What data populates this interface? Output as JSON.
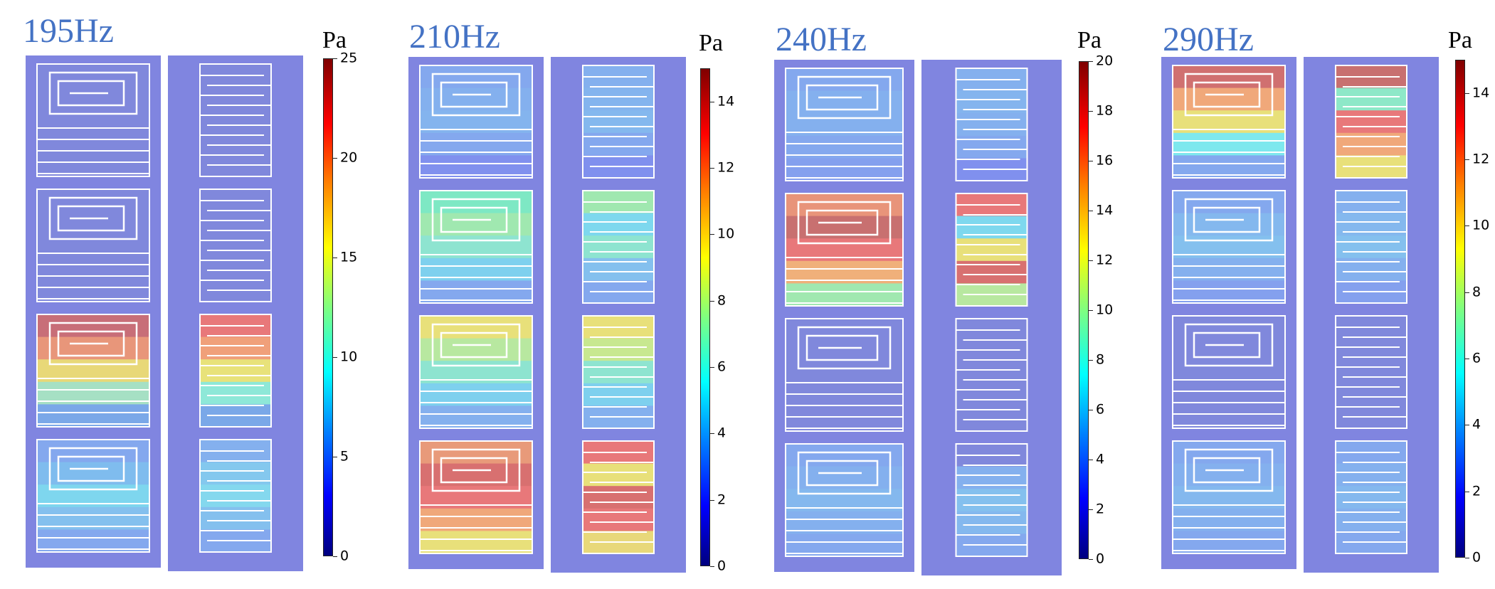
{
  "figure": {
    "unit_label": "Pa",
    "panels": [
      {
        "frequency_label": "195Hz",
        "colorbar": {
          "min": 0,
          "max": 25,
          "ticks": [
            "0",
            "5",
            "10",
            "15",
            "20",
            "25"
          ]
        },
        "cells": [
          {
            "left_field": [
              "#8088dc",
              "#8088dc",
              "#8088dc",
              "#8088dc",
              "#8088dc"
            ],
            "right_field": [
              "#8088dc",
              "#8088dc",
              "#8088dc",
              "#8088dc",
              "#8088dc"
            ]
          },
          {
            "left_field": [
              "#8088dc",
              "#8088dc",
              "#8088dc",
              "#8088dc",
              "#8088dc"
            ],
            "right_field": [
              "#8088dc",
              "#8088dc",
              "#8088dc",
              "#8088dc",
              "#8088dc"
            ]
          },
          {
            "left_field": [
              "#c86e78",
              "#e8967a",
              "#e8d878",
              "#a6e0c4",
              "#7aa8e8"
            ],
            "right_field": [
              "#e8787a",
              "#f0a07a",
              "#e8e27a",
              "#8ee8d8",
              "#7aa8e8"
            ]
          },
          {
            "left_field": [
              "#84a8ee",
              "#7fbcee",
              "#7ed6ee",
              "#84c0ee",
              "#84a8ee"
            ],
            "right_field": [
              "#84b0ee",
              "#84c8ee",
              "#84d8ee",
              "#84c0ee",
              "#84a8ee"
            ]
          }
        ]
      },
      {
        "frequency_label": "210Hz",
        "colorbar": {
          "min": 0,
          "max": 15,
          "ticks": [
            "0",
            "2",
            "4",
            "6",
            "8",
            "10",
            "12",
            "14"
          ]
        },
        "cells": [
          {
            "left_field": [
              "#84a8ee",
              "#84b0ee",
              "#84b4ee",
              "#84a8ee",
              "#8090ee"
            ],
            "right_field": [
              "#84b0ee",
              "#84b4ee",
              "#84b8ee",
              "#84a8ee",
              "#8090ee"
            ]
          },
          {
            "left_field": [
              "#7ee8c4",
              "#a0e8b0",
              "#8ee4d0",
              "#7ed0ee",
              "#84a8ee"
            ],
            "right_field": [
              "#a0e8b0",
              "#7ed8ee",
              "#8ee4d0",
              "#84c0ee",
              "#84a8ee"
            ]
          },
          {
            "left_field": [
              "#e8e07a",
              "#b8e8a0",
              "#8ee4d0",
              "#7ed0ee",
              "#84b0ee"
            ],
            "right_field": [
              "#e8e07a",
              "#c8e890",
              "#8ee4d0",
              "#7ed0ee",
              "#84b0ee"
            ]
          },
          {
            "left_field": [
              "#e89a7a",
              "#d87070",
              "#e8787a",
              "#f0a87a",
              "#e8e07a"
            ],
            "right_field": [
              "#e8787a",
              "#e8e07a",
              "#d87070",
              "#e8787a",
              "#e8d87a"
            ]
          }
        ]
      },
      {
        "frequency_label": "240Hz",
        "colorbar": {
          "min": 0,
          "max": 20,
          "ticks": [
            "0",
            "2",
            "4",
            "6",
            "8",
            "10",
            "12",
            "14",
            "16",
            "18",
            "20"
          ]
        },
        "cells": [
          {
            "left_field": [
              "#84a8ee",
              "#84b0ee",
              "#84b0ee",
              "#84a8ee",
              "#84a0ee"
            ],
            "right_field": [
              "#84b0ee",
              "#84b4ee",
              "#84b0ee",
              "#84a8ee",
              "#8090ee"
            ]
          },
          {
            "left_field": [
              "#e8947a",
              "#c87070",
              "#e8787a",
              "#f0b07a",
              "#a0e8b0"
            ],
            "right_field": [
              "#e8787a",
              "#7ed8ee",
              "#e8e07a",
              "#d87070",
              "#b8e8a0"
            ]
          },
          {
            "left_field": [
              "#8088dc",
              "#8088dc",
              "#8088dc",
              "#8088dc",
              "#8088dc"
            ],
            "right_field": [
              "#8088dc",
              "#8088dc",
              "#8088dc",
              "#8088dc",
              "#8088dc"
            ]
          },
          {
            "left_field": [
              "#84a8ee",
              "#84b0ee",
              "#84b8ee",
              "#84b0ee",
              "#84a8ee"
            ],
            "right_field": [
              "#8088dc",
              "#84b0ee",
              "#84c0ee",
              "#84b8ee",
              "#84a8ee"
            ]
          }
        ]
      },
      {
        "frequency_label": "290Hz",
        "colorbar": {
          "min": 0,
          "max": 15,
          "ticks": [
            "0",
            "2",
            "4",
            "6",
            "8",
            "10",
            "12",
            "14"
          ]
        },
        "cells": [
          {
            "left_field": [
              "#d07070",
              "#f0a87a",
              "#e8e07a",
              "#7ee8ee",
              "#84a8ee"
            ],
            "right_field": [
              "#c87070",
              "#8ee8c8",
              "#e8787a",
              "#f0a87a",
              "#e8e07a"
            ]
          },
          {
            "left_field": [
              "#84a8ee",
              "#84b8ee",
              "#84c0ee",
              "#84b0ee",
              "#84a0ee"
            ],
            "right_field": [
              "#84b0ee",
              "#84b8ee",
              "#84c0ee",
              "#84b0ee",
              "#84a0ee"
            ]
          },
          {
            "left_field": [
              "#8088dc",
              "#8088dc",
              "#8088dc",
              "#8088dc",
              "#8088dc"
            ],
            "right_field": [
              "#8088dc",
              "#8088dc",
              "#8088dc",
              "#8088dc",
              "#8088dc"
            ]
          },
          {
            "left_field": [
              "#84a8ee",
              "#84b0ee",
              "#84b8ee",
              "#84b0ee",
              "#84a8ee"
            ],
            "right_field": [
              "#84a8ee",
              "#84b0ee",
              "#84b8ee",
              "#84b0ee",
              "#84a8ee"
            ]
          }
        ]
      }
    ],
    "colors": {
      "background_slab": "#8085e0",
      "structure_lines": "#ffffff",
      "title_color": "#4472C4"
    }
  }
}
